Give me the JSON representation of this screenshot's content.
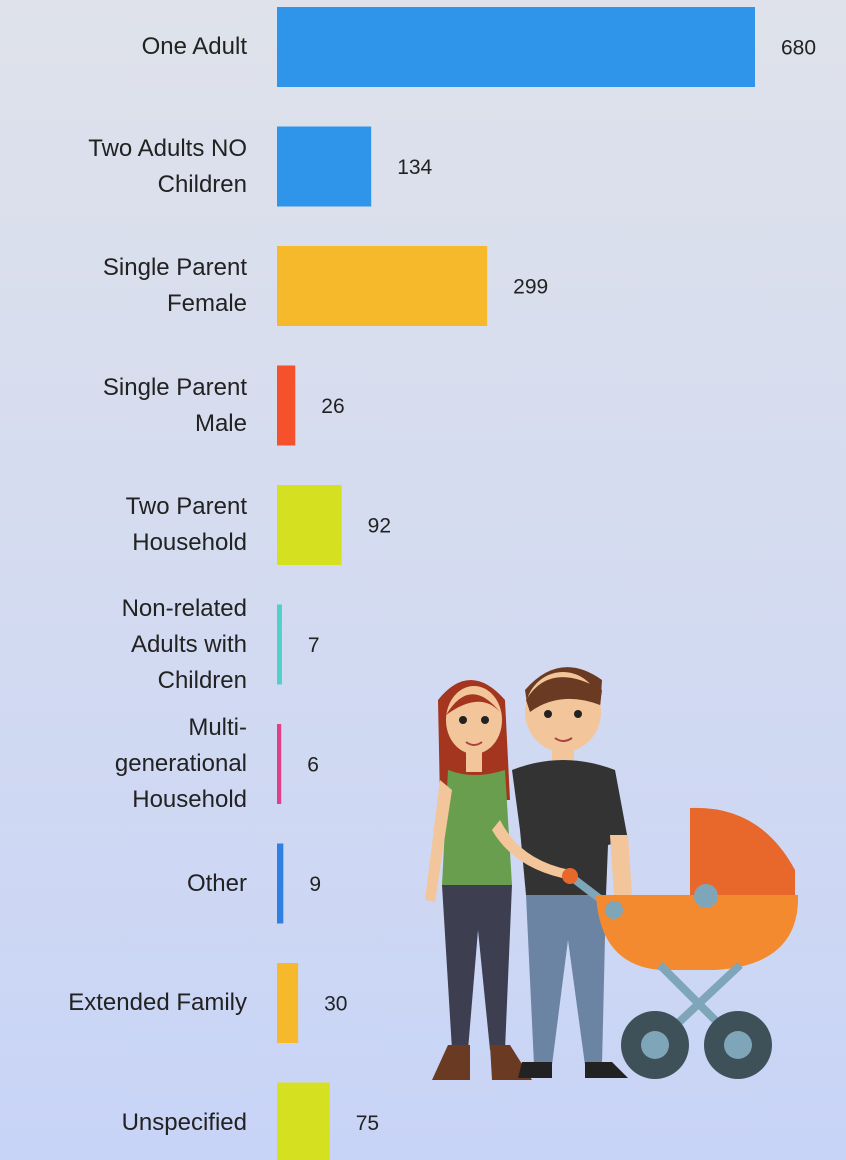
{
  "chart_data": {
    "type": "bar",
    "orientation": "horizontal",
    "categories": [
      "One Adult",
      "Two Adults NO Children",
      "Single Parent Female",
      "Single Parent Male",
      "Two Parent Household",
      "Non-related Adults with Children",
      "Multi-generational Household",
      "Other",
      "Extended Family",
      "Unspecified"
    ],
    "values": [
      680,
      134,
      299,
      26,
      92,
      7,
      6,
      9,
      30,
      75
    ],
    "colors": [
      "#2f95ea",
      "#2f95ea",
      "#f6b92b",
      "#f4512c",
      "#d4e020",
      "#4fd1c5",
      "#e0408a",
      "#2f80e0",
      "#f6b92b",
      "#d4e020"
    ]
  }
}
